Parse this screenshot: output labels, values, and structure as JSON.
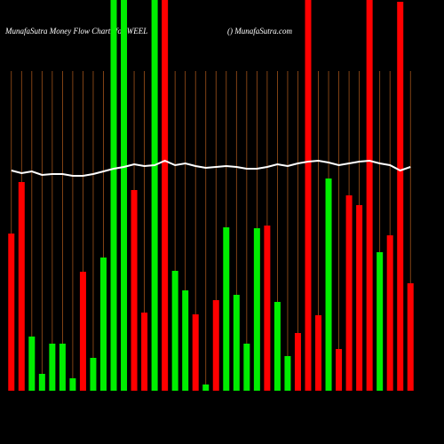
{
  "chart_data": {
    "type": "bar",
    "title": "MunafaSutra  Money Flow  Charts for WEEL",
    "subtitle": "() MunafaSutra.com",
    "categories": [
      null,
      null,
      null,
      null,
      null,
      null,
      null,
      null,
      null,
      null,
      null,
      null,
      null,
      null,
      null,
      null,
      null,
      null,
      null,
      null,
      null,
      null,
      null,
      null,
      null,
      null,
      null,
      null,
      null,
      null,
      null,
      null,
      null,
      null,
      null,
      null,
      null,
      null,
      null,
      null
    ],
    "values": [
      177,
      235,
      61,
      19,
      53,
      53,
      14,
      134,
      37,
      150,
      440,
      440,
      226,
      88,
      440,
      440,
      135,
      113,
      86,
      7,
      102,
      184,
      108,
      53,
      183,
      186,
      100,
      39,
      65,
      440,
      85,
      239,
      47,
      220,
      209,
      440,
      156,
      175,
      438,
      121
    ],
    "colors": [
      "#ff0000",
      "#ff0000",
      "#00ee00",
      "#00ee00",
      "#00ee00",
      "#00ee00",
      "#00ee00",
      "#ff0000",
      "#00ee00",
      "#00ee00",
      "#00ee00",
      "#00ee00",
      "#ff0000",
      "#ff0000",
      "#00ee00",
      "#ff0000",
      "#00ee00",
      "#00ee00",
      "#ff0000",
      "#00ee00",
      "#ff0000",
      "#00ee00",
      "#00ee00",
      "#00ee00",
      "#00ee00",
      "#ff0000",
      "#00ee00",
      "#00ee00",
      "#ff0000",
      "#ff0000",
      "#ff0000",
      "#00ee00",
      "#ff0000",
      "#ff0000",
      "#ff0000",
      "#ff0000",
      "#00ee00",
      "#ff0000",
      "#ff0000",
      "#ff0000"
    ],
    "line": {
      "color": "#ffffff",
      "values": [
        248,
        245,
        247,
        243,
        244,
        244,
        242,
        242,
        244,
        247,
        250,
        252,
        255,
        253,
        254,
        259,
        254,
        256,
        253,
        251,
        252,
        253,
        252,
        250,
        250,
        252,
        255,
        253,
        256,
        258,
        259,
        257,
        254,
        256,
        258,
        259,
        256,
        254,
        248,
        252
      ]
    },
    "ylim": [
      0,
      440
    ]
  }
}
